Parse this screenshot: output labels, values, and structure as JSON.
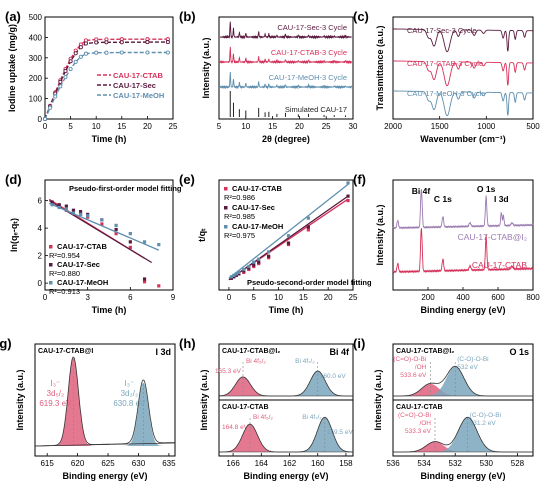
{
  "colors": {
    "ctab": "#d6315a",
    "sec": "#5a1a3e",
    "meoh": "#5f8fae",
    "sim": "#222222",
    "red_peak": "#e0607e",
    "blue_peak": "#7aa6bc",
    "purple_line": "#9b7bb0"
  },
  "chart_data": [
    {
      "id": "a",
      "type": "line",
      "panel_label": "(a)",
      "xlabel": "Time (h)",
      "ylabel": "Iodine uptake (mg/g)",
      "xlim": [
        0,
        25
      ],
      "ylim": [
        0,
        500
      ],
      "xticks": [
        0,
        5,
        10,
        15,
        20,
        25
      ],
      "yticks": [
        0,
        100,
        200,
        300,
        400,
        500
      ],
      "legend": "center-right",
      "series": [
        {
          "name": "CAU-17-CTAB",
          "color": "#d6315a",
          "x": [
            0,
            1,
            2,
            3,
            4,
            5,
            6,
            7,
            8,
            10,
            12,
            15,
            20,
            24
          ],
          "y": [
            0,
            65,
            130,
            190,
            245,
            295,
            335,
            365,
            385,
            390,
            390,
            391,
            391,
            391
          ]
        },
        {
          "name": "CAU-17-Sec",
          "color": "#5a1a3e",
          "x": [
            0,
            1,
            2,
            3,
            4,
            5,
            6,
            7,
            8,
            10,
            12,
            15,
            20,
            24
          ],
          "y": [
            0,
            62,
            125,
            182,
            235,
            283,
            322,
            352,
            370,
            375,
            376,
            376,
            377,
            377
          ]
        },
        {
          "name": "CAU-17-MeOH",
          "color": "#5f8fae",
          "x": [
            0,
            1,
            2,
            3,
            4,
            5,
            6,
            7,
            8,
            10,
            12,
            15,
            20,
            24
          ],
          "y": [
            0,
            55,
            110,
            160,
            205,
            245,
            280,
            305,
            320,
            325,
            325,
            326,
            326,
            326
          ]
        }
      ]
    },
    {
      "id": "b",
      "type": "line",
      "panel_label": "(b)",
      "xlabel": "2θ (degree)",
      "ylabel": "Intensity (a.u.)",
      "xlim": [
        5,
        30
      ],
      "xticks": [
        5,
        10,
        15,
        20,
        25,
        30
      ],
      "series": [
        {
          "name": "CAU-17-Sec-3 Cycle",
          "color": "#5a1a3e"
        },
        {
          "name": "CAU-17-CTAB-3 Cycle",
          "color": "#d6315a"
        },
        {
          "name": "CAU-17-MeOH-3 Cycle",
          "color": "#5f8fae"
        },
        {
          "name": "Simulated CAU-17",
          "color": "#222222"
        }
      ],
      "peaks": [
        {
          "x": 7.1,
          "h": 1.0
        },
        {
          "x": 7.7,
          "h": 0.55
        },
        {
          "x": 8.8,
          "h": 0.3
        },
        {
          "x": 10.0,
          "h": 0.25
        },
        {
          "x": 12.4,
          "h": 0.35
        },
        {
          "x": 13.6,
          "h": 0.18
        },
        {
          "x": 14.3,
          "h": 0.2
        },
        {
          "x": 15.8,
          "h": 0.12
        },
        {
          "x": 17.4,
          "h": 0.16
        },
        {
          "x": 19.8,
          "h": 0.1
        },
        {
          "x": 21.7,
          "h": 0.12
        },
        {
          "x": 24.6,
          "h": 0.08
        },
        {
          "x": 26.5,
          "h": 0.07
        },
        {
          "x": 28.6,
          "h": 0.06
        }
      ]
    },
    {
      "id": "c",
      "type": "line",
      "panel_label": "(c)",
      "xlabel": "Wavenumber (cm⁻¹)",
      "ylabel": "Transmittance (a.u.)",
      "xlim": [
        2000,
        500
      ],
      "xticks": [
        2000,
        1500,
        1000,
        500
      ],
      "series": [
        {
          "name": "CAU-17-Sec-3 Cycle",
          "color": "#5a1a3e"
        },
        {
          "name": "CAU-17-CTAB-3 Cycle",
          "color": "#d6315a"
        },
        {
          "name": "CAU-17-MeOH-3 Cycle",
          "color": "#5f8fae"
        }
      ],
      "dips": [
        {
          "x": 1620,
          "d": 0.35,
          "w": 28
        },
        {
          "x": 1560,
          "d": 0.75,
          "w": 35
        },
        {
          "x": 1420,
          "d": 1.0,
          "w": 45
        },
        {
          "x": 1300,
          "d": 0.3,
          "w": 22
        },
        {
          "x": 1130,
          "d": 0.25,
          "w": 22
        },
        {
          "x": 1030,
          "d": 0.15,
          "w": 20
        },
        {
          "x": 820,
          "d": 0.35,
          "w": 15
        },
        {
          "x": 770,
          "d": 0.95,
          "w": 12
        },
        {
          "x": 690,
          "d": 0.4,
          "w": 12
        },
        {
          "x": 590,
          "d": 0.3,
          "w": 14
        }
      ]
    },
    {
      "id": "d",
      "type": "scatter",
      "panel_label": "(d)",
      "xlabel": "Time (h)",
      "ylabel": "ln(qₑ-qₜ)",
      "xlim": [
        0,
        9
      ],
      "ylim": [
        -0.5,
        7.5
      ],
      "xticks": [
        0,
        3,
        6,
        9
      ],
      "yticks": [
        0,
        2,
        4,
        6
      ],
      "annotation": "Pseudo-first-order model fitting",
      "series": [
        {
          "name": "CAU-17-CTAB",
          "color": "#d6315a",
          "r2": "R²=0.954",
          "x": [
            0.5,
            1,
            1.5,
            2,
            2.5,
            3,
            4,
            5,
            6,
            7,
            8
          ],
          "y": [
            5.8,
            5.6,
            5.3,
            5.2,
            5.0,
            4.8,
            4.3,
            3.6,
            2.6,
            0.1,
            -0.2
          ],
          "fit": [
            [
              0.3,
              6.1
            ],
            [
              7,
              1.8
            ]
          ]
        },
        {
          "name": "CAU-17-Sec",
          "color": "#5a1a3e",
          "r2": "R²=0.880",
          "x": [
            0.5,
            1,
            1.5,
            2,
            2.5,
            3,
            4,
            5,
            6,
            7
          ],
          "y": [
            5.9,
            5.7,
            5.6,
            5.3,
            5.2,
            5.0,
            4.6,
            3.9,
            3.0,
            0.3
          ],
          "fit": [
            [
              0.3,
              6.0
            ],
            [
              7.5,
              1.5
            ]
          ]
        },
        {
          "name": "CAU-17-MeOH",
          "color": "#5f8fae",
          "r2": "R²=0.913",
          "x": [
            0.5,
            1,
            1.5,
            2,
            2.5,
            3,
            4,
            5,
            6,
            7,
            8
          ],
          "y": [
            5.7,
            5.5,
            5.4,
            5.1,
            5.0,
            4.9,
            4.6,
            4.2,
            3.6,
            3.0,
            2.8
          ],
          "fit": [
            [
              0.3,
              5.8
            ],
            [
              8,
              2.4
            ]
          ]
        }
      ]
    },
    {
      "id": "e",
      "type": "scatter",
      "panel_label": "(e)",
      "xlabel": "Time (h)",
      "ylabel": "t/qₜ",
      "xlim": [
        -2,
        25
      ],
      "ylim": [
        0,
        0.075
      ],
      "xticks": [
        0,
        5,
        10,
        15,
        20,
        25
      ],
      "annotation": "Pseudo-second-order model fitting",
      "series": [
        {
          "name": "CAU-17-CTAB",
          "color": "#d6315a",
          "r2": "R²=0.986",
          "x": [
            0.5,
            1,
            1.5,
            2,
            3,
            4,
            5,
            6,
            8,
            12,
            16,
            24
          ],
          "y": [
            0.008,
            0.009,
            0.01,
            0.011,
            0.012,
            0.014,
            0.016,
            0.018,
            0.022,
            0.031,
            0.041,
            0.061
          ],
          "fit": [
            [
              0,
              0.007
            ],
            [
              24,
              0.062
            ]
          ]
        },
        {
          "name": "CAU-17-Sec",
          "color": "#5a1a3e",
          "r2": "R²=0.985",
          "x": [
            0.5,
            1,
            1.5,
            2,
            3,
            4,
            5,
            6,
            8,
            12,
            16,
            24
          ],
          "y": [
            0.008,
            0.009,
            0.01,
            0.011,
            0.013,
            0.015,
            0.017,
            0.019,
            0.023,
            0.032,
            0.043,
            0.064
          ],
          "fit": [
            [
              0,
              0.007
            ],
            [
              24,
              0.064
            ]
          ]
        },
        {
          "name": "CAU-17-MeOH",
          "color": "#5f8fae",
          "r2": "R²=0.975",
          "x": [
            0.5,
            1,
            1.5,
            2,
            3,
            4,
            5,
            6,
            8,
            12,
            16,
            24
          ],
          "y": [
            0.009,
            0.01,
            0.011,
            0.012,
            0.014,
            0.016,
            0.019,
            0.021,
            0.026,
            0.037,
            0.049,
            0.073
          ],
          "fit": [
            [
              0,
              0.008
            ],
            [
              24,
              0.072
            ]
          ]
        }
      ]
    },
    {
      "id": "f",
      "type": "line",
      "panel_label": "(f)",
      "xlabel": "Binding energy (eV)",
      "ylabel": "Intensity (a.u.)",
      "xlim": [
        0,
        800
      ],
      "xticks": [
        200,
        400,
        600,
        800
      ],
      "series": [
        {
          "name": "CAU-17-CTAB@I₂",
          "color": "#9b7bb0"
        },
        {
          "name": "CAU-17-CTAB",
          "color": "#d6315a"
        }
      ],
      "peak_labels": [
        {
          "text": "Bi 4f",
          "x": 160
        },
        {
          "text": "C 1s",
          "x": 285
        },
        {
          "text": "O 1s",
          "x": 532
        },
        {
          "text": "I 3d",
          "x": 619
        }
      ]
    },
    {
      "id": "g",
      "type": "area",
      "panel_label": "(g)",
      "xlabel": "Binding energy (eV)",
      "ylabel": "Intensity (a.u.)",
      "xlim": [
        613,
        636
      ],
      "xticks": [
        615,
        620,
        625,
        630,
        635
      ],
      "reversed": false,
      "sample": "CAU-17-CTAB@I",
      "region": "I 3d",
      "peaks": [
        {
          "x": 619.3,
          "h": 1.0,
          "w": 1.2,
          "color": "#e0607e",
          "l1": "I₃⁻",
          "l2": "3d₅/₂",
          "l3": "619.3 eV"
        },
        {
          "x": 630.8,
          "h": 0.72,
          "w": 1.2,
          "color": "#7aa6bc",
          "l1": "I₃⁻",
          "l2": "3d₃/₂",
          "l3": "630.8 eV"
        }
      ]
    },
    {
      "id": "h",
      "type": "area",
      "panel_label": "(h)",
      "xlabel": "Binding energy (eV)",
      "ylabel": "Intensity (a.u.)",
      "xlim": [
        167,
        157.5
      ],
      "xticks": [
        166,
        164,
        162,
        160,
        158
      ],
      "region": "Bi 4f",
      "top": {
        "sample": "CAU-17-CTAB@I₂",
        "peaks": [
          {
            "x": 165.3,
            "h": 0.55,
            "w": 0.75,
            "color": "#e0607e",
            "label": "Bi 4f₅/₂",
            "value": "165.3 eV"
          },
          {
            "x": 160.0,
            "h": 0.72,
            "w": 0.75,
            "color": "#7aa6bc",
            "label": "Bi 4f₇/₂",
            "value": "160.0 eV"
          }
        ]
      },
      "bottom": {
        "sample": "CAU-17-CTAB",
        "peaks": [
          {
            "x": 164.8,
            "h": 0.8,
            "w": 0.75,
            "color": "#e0607e",
            "label": "Bi 4f₅/₂",
            "value": "164.8 eV"
          },
          {
            "x": 159.5,
            "h": 1.0,
            "w": 0.75,
            "color": "#7aa6bc",
            "label": "Bi 4f₇/₂",
            "value": "159.5 eV"
          }
        ]
      }
    },
    {
      "id": "i",
      "type": "area",
      "panel_label": "(i)",
      "xlabel": "Binding energy (eV)",
      "ylabel": "Intensity (a.u.)",
      "xlim": [
        536,
        527
      ],
      "xticks": [
        536,
        534,
        532,
        530,
        528
      ],
      "region": "O 1s",
      "top": {
        "sample": "CAU-17-CTAB@I₂",
        "peaks": [
          {
            "x": 533.6,
            "h": 0.35,
            "w": 0.8,
            "color": "#e0607e",
            "label": "(C=O)-O-Bi",
            "label2": "/OH",
            "value": "533.6 eV"
          },
          {
            "x": 532.0,
            "h": 0.85,
            "w": 0.8,
            "color": "#7aa6bc",
            "label": "(C-O)-O-Bi",
            "label2": "",
            "value": "532 eV"
          }
        ]
      },
      "bottom": {
        "sample": "CAU-17-CTAB",
        "peaks": [
          {
            "x": 533.3,
            "h": 0.3,
            "w": 0.8,
            "color": "#e0607e",
            "label": "(C=O)-O-Bi",
            "label2": "/OH",
            "value": "533.3 eV"
          },
          {
            "x": 531.2,
            "h": 1.0,
            "w": 0.85,
            "color": "#7aa6bc",
            "label": "(C-O)-O-Bi",
            "label2": "",
            "value": "531.2 eV"
          }
        ]
      }
    }
  ]
}
